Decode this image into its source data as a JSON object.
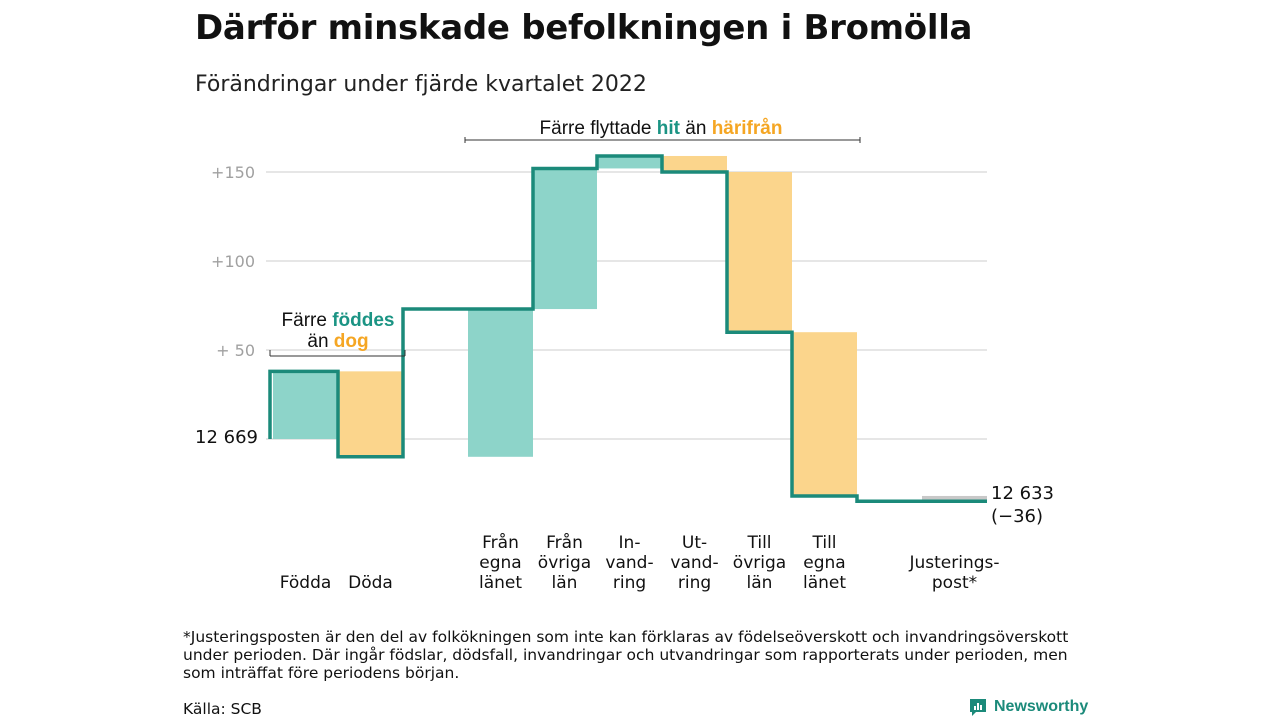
{
  "header": {
    "title": "Därför minskade befolkningen i Bromölla",
    "subtitle": "Förändringar under fjärde kvartalet 2022"
  },
  "annotations": {
    "births_deaths": {
      "line1_a": "Färre ",
      "line1_b": "föddes",
      "line2_a": "än ",
      "line2_b": "dog"
    },
    "migration": {
      "part_a": "Färre flyttade ",
      "part_b": "hit",
      "part_c": " än ",
      "part_d": "härifrån"
    }
  },
  "labels": {
    "start_value": "12 669",
    "end_value": "12 633",
    "end_change": "(−36)"
  },
  "footnote": "*Justeringsposten är den del av folkökningen som inte kan förklaras av födelseöverskott och invandringsöverskott under perioden. Där ingår födslar, dödsfall, invandringar och utvandringar som rapporterats under perioden, men som inträffat före periodens början.",
  "source": "Källa: SCB",
  "brand": {
    "name": "Newsworthy",
    "icon": "newsworthy-logo-icon"
  },
  "colors": {
    "inflow": "#8dd4c9",
    "outflow": "#fbd58c",
    "adjustment": "#c8c8c8",
    "step_line": "#1b8a7a",
    "teal_text": "#1b9484",
    "orange_text": "#f5a623",
    "grid": "#dddddd",
    "tick_text": "#a0a0a0"
  },
  "chart_data": {
    "type": "waterfall",
    "start_total": 12669,
    "end_total": 12633,
    "net_change": -36,
    "yticks": [
      {
        "value": 50,
        "label": "+ 50"
      },
      {
        "value": 100,
        "label": "+100"
      },
      {
        "value": 150,
        "label": "+150"
      }
    ],
    "ylim": [
      -36,
      158
    ],
    "grid": true,
    "categories": [
      {
        "label": [
          "Födda"
        ],
        "change": 38,
        "kind": "inflow"
      },
      {
        "label": [
          "Döda"
        ],
        "change": -48,
        "kind": "outflow"
      },
      {
        "label": [
          "Från",
          "egna",
          "länet"
        ],
        "change": 83,
        "kind": "inflow"
      },
      {
        "label": [
          "Från",
          "övriga",
          "län"
        ],
        "change": 79,
        "kind": "inflow"
      },
      {
        "label": [
          "In-",
          "vand-",
          "ring"
        ],
        "change": 7,
        "kind": "inflow"
      },
      {
        "label": [
          "Ut-",
          "vand-",
          "ring"
        ],
        "change": -9,
        "kind": "outflow"
      },
      {
        "label": [
          "Till",
          "övriga",
          "län"
        ],
        "change": -90,
        "kind": "outflow"
      },
      {
        "label": [
          "Till",
          "egna",
          "länet"
        ],
        "change": -92,
        "kind": "outflow"
      },
      {
        "label": [
          "Justerings-",
          "post*"
        ],
        "change": -3,
        "kind": "adjustment"
      }
    ]
  }
}
